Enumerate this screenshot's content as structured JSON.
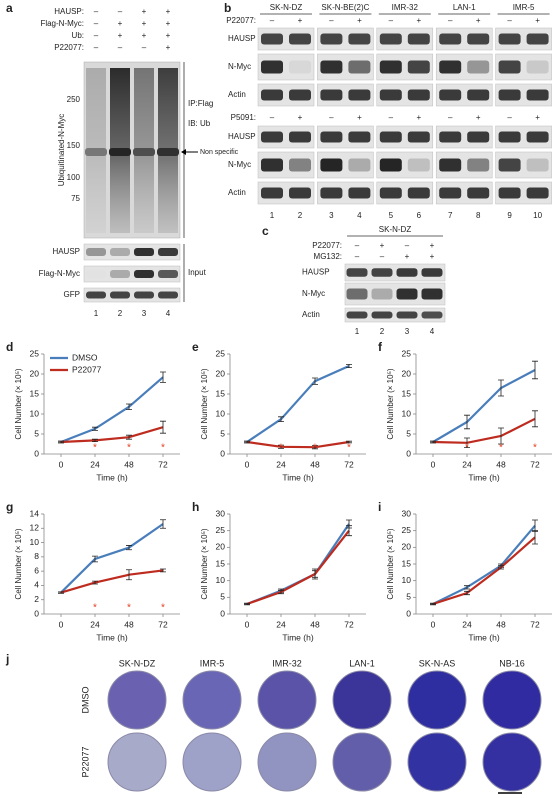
{
  "panel_a": {
    "label": "a",
    "conditions": [
      {
        "label": "HAUSP:",
        "signs": [
          "–",
          "–",
          "+",
          "+"
        ]
      },
      {
        "label": "Flag-N-Myc:",
        "signs": [
          "–",
          "+",
          "+",
          "+"
        ]
      },
      {
        "label": "Ub:",
        "signs": [
          "–",
          "+",
          "+",
          "+"
        ]
      },
      {
        "label": "P22077:",
        "signs": [
          "–",
          "–",
          "–",
          "+"
        ]
      }
    ],
    "mw_axis_label": "Ubiquitinated-N-Myc",
    "mw_ticks": [
      250,
      150,
      100,
      75
    ],
    "ip": "IP:Flag",
    "ib": "IB: Ub",
    "non_specific": "Non specific",
    "input_rows": [
      "HAUSP",
      "Flag-N-Myc",
      "GFP"
    ],
    "input": "Input",
    "lanes": [
      1,
      2,
      3,
      4
    ]
  },
  "panel_b": {
    "label": "b",
    "cell_lines": [
      "SK-N-DZ",
      "SK-N-BE(2)C",
      "IMR-32",
      "LAN-1",
      "IMR-5"
    ],
    "treatments": [
      {
        "label": "P22077:",
        "signs": [
          "–",
          "+",
          "–",
          "+",
          "–",
          "+",
          "–",
          "+",
          "–",
          "+"
        ]
      },
      {
        "label": "P5091:",
        "signs": [
          "–",
          "+",
          "–",
          "+",
          "–",
          "+",
          "–",
          "+",
          "–",
          "+"
        ]
      }
    ],
    "rows": [
      "HAUSP",
      "N-Myc",
      "Actin"
    ],
    "lanes": [
      1,
      2,
      3,
      4,
      5,
      6,
      7,
      8,
      9,
      10
    ]
  },
  "panel_c": {
    "label": "c",
    "cell_line": "SK-N-DZ",
    "conditions": [
      {
        "label": "P22077:",
        "signs": [
          "–",
          "+",
          "–",
          "+"
        ]
      },
      {
        "label": "MG132:",
        "signs": [
          "–",
          "–",
          "+",
          "+"
        ]
      }
    ],
    "rows": [
      "HAUSP",
      "N-Myc",
      "Actin"
    ],
    "lanes": [
      1,
      2,
      3,
      4
    ]
  },
  "chart_data": [
    {
      "type": "line",
      "label": "d",
      "x": [
        0,
        24,
        48,
        72
      ],
      "xlim": [
        -12,
        84
      ],
      "xticks": [
        0,
        24,
        48,
        72
      ],
      "ylim": [
        0,
        25
      ],
      "yticks": [
        0,
        5,
        10,
        15,
        20,
        25
      ],
      "xlabel": "Time (h)",
      "ylabel": "Cell Number (× 10⁵)",
      "legend": "upper left",
      "series": [
        {
          "name": "DMSO",
          "color": "#4a7ebb",
          "values": [
            3,
            6.3,
            11.8,
            19.2
          ],
          "errors": [
            0.2,
            0.4,
            0.7,
            1.3
          ]
        },
        {
          "name": "P22077",
          "color": "#be2b1f",
          "values": [
            3,
            3.4,
            4.2,
            6.7
          ],
          "errors": [
            0.2,
            0.3,
            0.5,
            1.5
          ]
        }
      ],
      "annotations": [
        {
          "x": 24,
          "text": "*"
        },
        {
          "x": 48,
          "text": "*"
        },
        {
          "x": 72,
          "text": "*"
        }
      ],
      "annotation_color": "#e03c1f"
    },
    {
      "type": "line",
      "label": "e",
      "x": [
        0,
        24,
        48,
        72
      ],
      "xlim": [
        -12,
        84
      ],
      "xticks": [
        0,
        24,
        48,
        72
      ],
      "ylim": [
        0,
        25
      ],
      "yticks": [
        0,
        5,
        10,
        15,
        20,
        25
      ],
      "xlabel": "Time (h)",
      "ylabel": "Cell Number (× 10⁵)",
      "series": [
        {
          "color": "#4a7ebb",
          "values": [
            3,
            8.7,
            18.2,
            22
          ],
          "errors": [
            0.2,
            0.6,
            0.8,
            0.4
          ]
        },
        {
          "color": "#be2b1f",
          "values": [
            3,
            1.8,
            1.7,
            3
          ],
          "errors": [
            0.2,
            0.4,
            0.4,
            0.2
          ]
        }
      ],
      "annotations": [
        {
          "x": 24,
          "text": "*"
        },
        {
          "x": 48,
          "text": "*"
        },
        {
          "x": 72,
          "text": "*"
        }
      ],
      "annotation_color": "#e03c1f"
    },
    {
      "type": "line",
      "label": "f",
      "x": [
        0,
        24,
        48,
        72
      ],
      "xlim": [
        -12,
        84
      ],
      "xticks": [
        0,
        24,
        48,
        72
      ],
      "ylim": [
        0,
        25
      ],
      "yticks": [
        0,
        5,
        10,
        15,
        20,
        25
      ],
      "xlabel": "Time (h)",
      "ylabel": "Cell Number (× 10⁵)",
      "series": [
        {
          "color": "#4a7ebb",
          "values": [
            3,
            8,
            16.5,
            21
          ],
          "errors": [
            0.2,
            1.7,
            2,
            2.2
          ]
        },
        {
          "color": "#be2b1f",
          "values": [
            3,
            2.8,
            4.5,
            8.8
          ],
          "errors": [
            0.2,
            1.2,
            2,
            2
          ]
        }
      ],
      "annotations": [
        {
          "x": 24,
          "text": "*"
        },
        {
          "x": 48,
          "text": "*"
        },
        {
          "x": 72,
          "text": "*"
        }
      ],
      "annotation_color": "#e03c1f"
    },
    {
      "type": "line",
      "label": "g",
      "x": [
        0,
        24,
        48,
        72
      ],
      "xlim": [
        -12,
        84
      ],
      "xticks": [
        0,
        24,
        48,
        72
      ],
      "ylim": [
        0,
        14
      ],
      "yticks": [
        0,
        2,
        4,
        6,
        8,
        10,
        12,
        14
      ],
      "xlabel": "Time (h)",
      "ylabel": "Cell Number (× 10⁵)",
      "series": [
        {
          "color": "#4a7ebb",
          "values": [
            3,
            7.7,
            9.3,
            12.6
          ],
          "errors": [
            0.1,
            0.4,
            0.3,
            0.6
          ]
        },
        {
          "color": "#be2b1f",
          "values": [
            3,
            4.4,
            5.5,
            6.1
          ],
          "errors": [
            0.1,
            0.2,
            0.7,
            0.2
          ]
        }
      ],
      "annotations": [
        {
          "x": 24,
          "text": "*"
        },
        {
          "x": 48,
          "text": "*"
        },
        {
          "x": 72,
          "text": "*"
        }
      ],
      "annotation_color": "#e03c1f"
    },
    {
      "type": "line",
      "label": "h",
      "x": [
        0,
        24,
        48,
        72
      ],
      "xlim": [
        -12,
        84
      ],
      "xticks": [
        0,
        24,
        48,
        72
      ],
      "ylim": [
        0,
        30
      ],
      "yticks": [
        0,
        5,
        10,
        15,
        20,
        25,
        30
      ],
      "xlabel": "Time (h)",
      "ylabel": "Cell Number (× 10⁵)",
      "series": [
        {
          "color": "#4a7ebb",
          "values": [
            3,
            7,
            12,
            27
          ],
          "errors": [
            0.2,
            0.5,
            1,
            1.2
          ]
        },
        {
          "color": "#be2b1f",
          "values": [
            3,
            6.6,
            12,
            25
          ],
          "errors": [
            0.2,
            0.5,
            1.5,
            1.5
          ]
        }
      ]
    },
    {
      "type": "line",
      "label": "i",
      "x": [
        0,
        24,
        48,
        72
      ],
      "xlim": [
        -12,
        84
      ],
      "xticks": [
        0,
        24,
        48,
        72
      ],
      "ylim": [
        0,
        30
      ],
      "yticks": [
        0,
        5,
        10,
        15,
        20,
        25,
        30
      ],
      "xlabel": "Time (h)",
      "ylabel": "Cell Number (× 10⁵)",
      "series": [
        {
          "color": "#4a7ebb",
          "values": [
            3,
            8,
            14.5,
            26.5
          ],
          "errors": [
            0.2,
            0.5,
            0.5,
            1.7
          ]
        },
        {
          "color": "#be2b1f",
          "values": [
            3,
            6.3,
            14,
            23
          ],
          "errors": [
            0.2,
            0.5,
            0.5,
            2
          ]
        }
      ]
    }
  ],
  "panel_j": {
    "label": "j",
    "cell_lines": [
      "SK-N-DZ",
      "IMR-5",
      "IMR-32",
      "LAN-1",
      "SK-N-AS",
      "NB-16"
    ],
    "treatments": [
      "DMSO",
      "P22077"
    ],
    "dish_colors": [
      [
        "#6a62b0",
        "#6a66b6",
        "#5a53a8",
        "#3b3499",
        "#2e2ea0",
        "#302ba0"
      ],
      [
        "#a8aac9",
        "#9ea1c8",
        "#9193c0",
        "#625ea9",
        "#3232a2",
        "#3430a1"
      ]
    ]
  }
}
